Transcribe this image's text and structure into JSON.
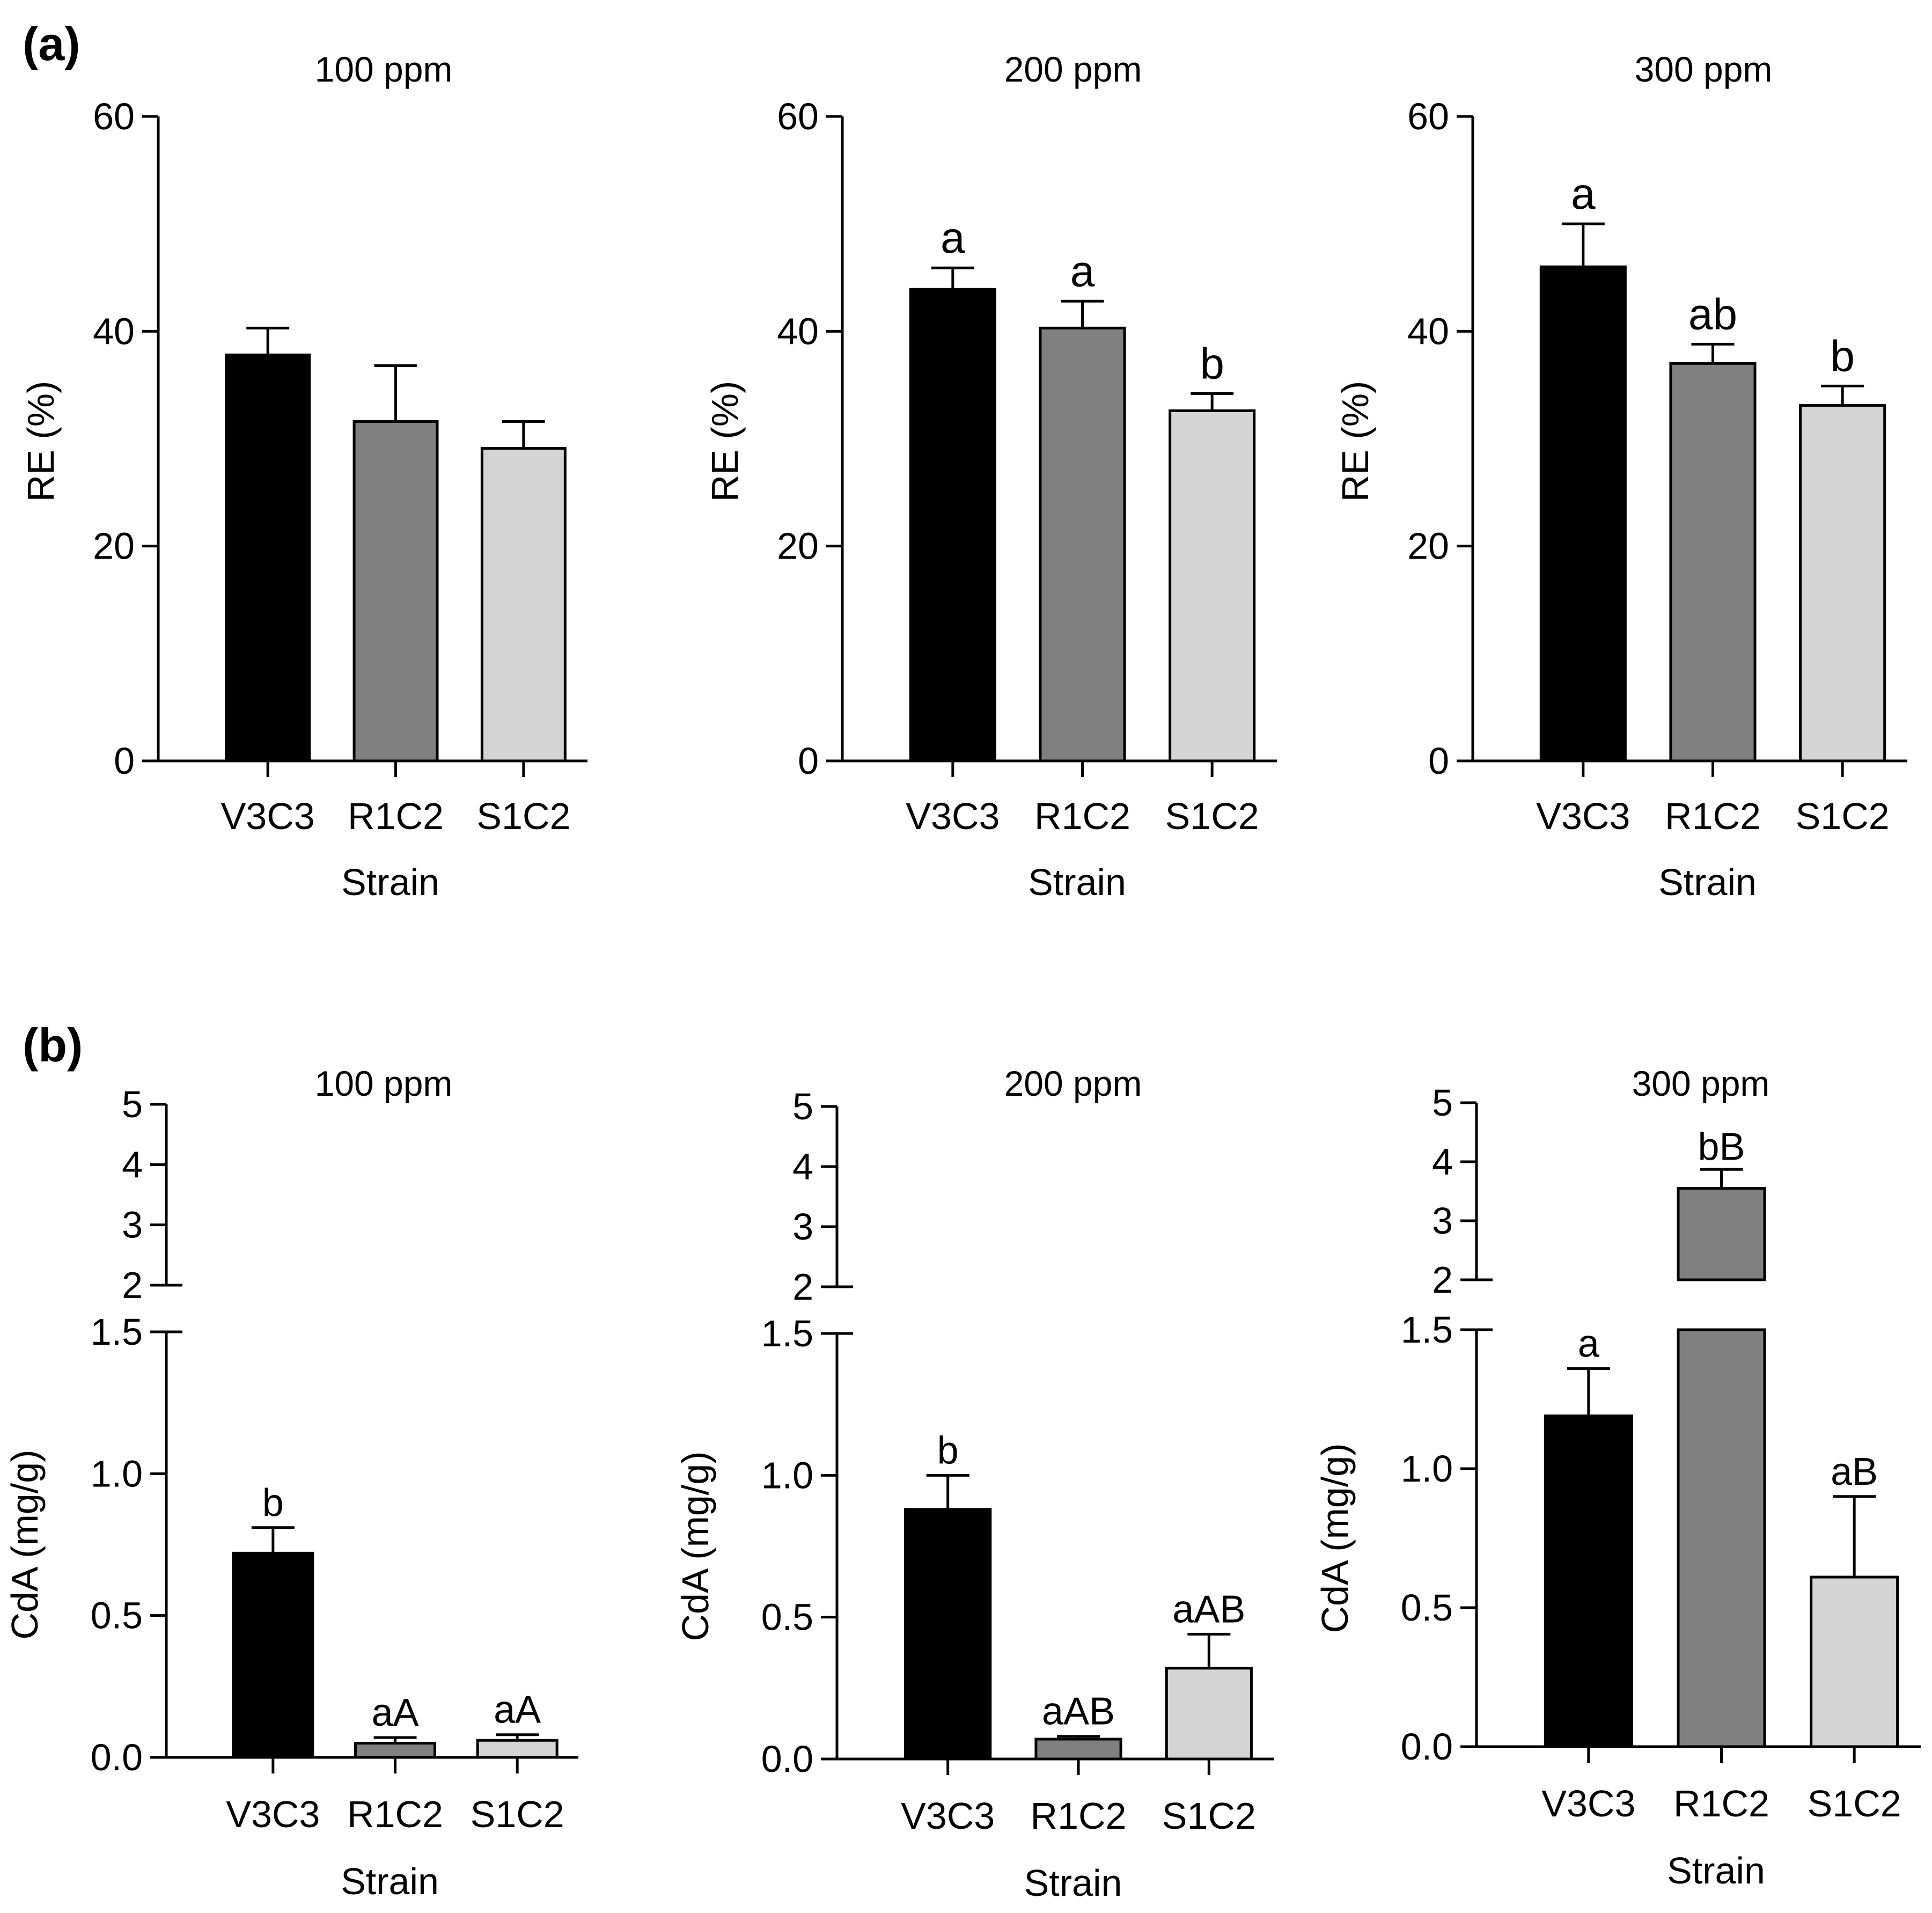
{
  "panel_labels": [
    "(a)",
    "(b)"
  ],
  "chart_data": [
    {
      "type": "bar",
      "panel": "(a)",
      "title": "100 ppm",
      "xlabel": "Strain",
      "ylabel": "RE (%)",
      "ylim": [
        0,
        60
      ],
      "yticks": [
        0,
        20,
        40,
        60
      ],
      "categories": [
        "V3C3",
        "R1C2",
        "S1C2"
      ],
      "values": [
        37.8,
        31.6,
        29.1
      ],
      "errors": [
        2.5,
        5.2,
        2.5
      ],
      "colors": [
        "#000000",
        "#808080",
        "#d4d4d4"
      ],
      "sig_letters": [
        "",
        "",
        ""
      ]
    },
    {
      "type": "bar",
      "panel": "(a)",
      "title": "200 ppm",
      "xlabel": "Strain",
      "ylabel": "RE (%)",
      "ylim": [
        0,
        60
      ],
      "yticks": [
        0,
        20,
        40,
        60
      ],
      "categories": [
        "V3C3",
        "R1C2",
        "S1C2"
      ],
      "values": [
        43.9,
        40.3,
        32.6
      ],
      "errors": [
        2.0,
        2.5,
        1.6
      ],
      "colors": [
        "#000000",
        "#808080",
        "#d4d4d4"
      ],
      "sig_letters": [
        "a",
        "a",
        "b"
      ]
    },
    {
      "type": "bar",
      "panel": "(a)",
      "title": "300 ppm",
      "xlabel": "Strain",
      "ylabel": "RE (%)",
      "ylim": [
        0,
        60
      ],
      "yticks": [
        0,
        20,
        40,
        60
      ],
      "categories": [
        "V3C3",
        "R1C2",
        "S1C2"
      ],
      "values": [
        46.0,
        37.0,
        33.1
      ],
      "errors": [
        4.0,
        1.8,
        1.8
      ],
      "colors": [
        "#000000",
        "#808080",
        "#d4d4d4"
      ],
      "sig_letters": [
        "a",
        "ab",
        "b"
      ]
    },
    {
      "type": "bar",
      "panel": "(b)",
      "title": "100 ppm",
      "xlabel": "Strain",
      "ylabel": "CdA (mg/g)",
      "ylim_lower": [
        0,
        1.5
      ],
      "ylim_upper": [
        2,
        5
      ],
      "yticks_lower": [
        "0.0",
        "0.5",
        "1.0",
        "1.5"
      ],
      "yticks_upper": [
        "2",
        "3",
        "4",
        "5"
      ],
      "categories": [
        "V3C3",
        "R1C2",
        "S1C2"
      ],
      "values": [
        0.72,
        0.05,
        0.06
      ],
      "errors": [
        0.09,
        0.02,
        0.02
      ],
      "colors": [
        "#000000",
        "#808080",
        "#d4d4d4"
      ],
      "sig_letters": [
        "b",
        "aA",
        "aA"
      ]
    },
    {
      "type": "bar",
      "panel": "(b)",
      "title": "200 ppm",
      "xlabel": "Strain",
      "ylabel": "CdA (mg/g)",
      "ylim_lower": [
        0,
        1.5
      ],
      "ylim_upper": [
        2,
        5
      ],
      "yticks_lower": [
        "0.0",
        "0.5",
        "1.0",
        "1.5"
      ],
      "yticks_upper": [
        "2",
        "3",
        "4",
        "5"
      ],
      "categories": [
        "V3C3",
        "R1C2",
        "S1C2"
      ],
      "values": [
        0.88,
        0.07,
        0.32
      ],
      "errors": [
        0.12,
        0.01,
        0.12
      ],
      "colors": [
        "#000000",
        "#808080",
        "#d4d4d4"
      ],
      "sig_letters": [
        "b",
        "aAB",
        "aAB"
      ]
    },
    {
      "type": "bar",
      "panel": "(b)",
      "title": "300 ppm",
      "xlabel": "Strain",
      "ylabel": "CdA (mg/g)",
      "ylim_lower": [
        0,
        1.5
      ],
      "ylim_upper": [
        2,
        5
      ],
      "yticks_lower": [
        "0.0",
        "0.5",
        "1.0",
        "1.5"
      ],
      "yticks_upper": [
        "2",
        "3",
        "4",
        "5"
      ],
      "categories": [
        "V3C3",
        "R1C2",
        "S1C2"
      ],
      "values": [
        1.19,
        3.55,
        0.61
      ],
      "errors": [
        0.17,
        0.32,
        0.29
      ],
      "colors": [
        "#000000",
        "#808080",
        "#d4d4d4"
      ],
      "sig_letters": [
        "a",
        "bB",
        "aB"
      ]
    }
  ]
}
